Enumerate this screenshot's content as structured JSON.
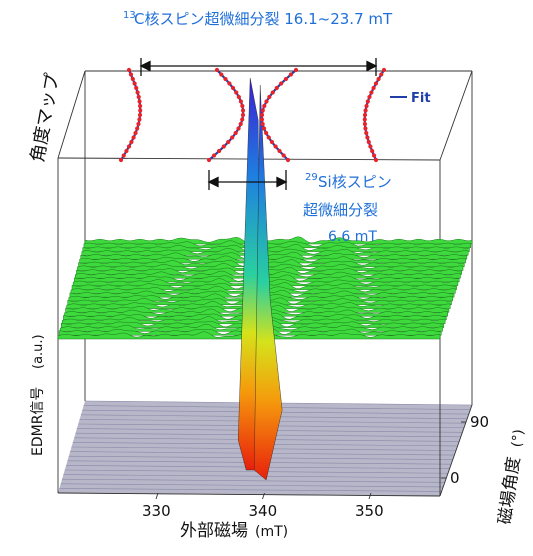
{
  "chart_data": {
    "type": "3d-waterfall",
    "xlabel_main": "外部磁場",
    "xlabel_unit": "(mT)",
    "ylabel_main": "EDMR信号",
    "ylabel_unit": "(a.u.)",
    "zlabel_main": "磁場角度",
    "zlabel_unit": "(°)",
    "x_ticks": [
      "330",
      "340",
      "350"
    ],
    "x_tick_values": [
      330,
      340,
      350
    ],
    "z_ticks": [
      "90",
      "0"
    ],
    "z_tick_values": [
      90,
      0
    ],
    "angle_map_label": "角度マップ",
    "fit_label": "Fit",
    "fit_color": "#1f3ea8",
    "data_color": "#e8242b",
    "annotation_13c_sup": "13",
    "annotation_13c": "C核スピン超微細分裂 16.1~23.7 mT",
    "annotation_29si_sup": "29",
    "annotation_29si_line1": "Si核スピン",
    "annotation_29si_line2": "超微細分裂",
    "annotation_29si_line3": "6.6 mT",
    "center_field": 339.5,
    "c13_splitting_range": [
      16.1,
      23.7
    ],
    "si29_splitting": 6.6,
    "annotation_color": "#1f6fd8",
    "baseline_color": "#3dd93d",
    "floor_color": "#b8b8c8"
  }
}
